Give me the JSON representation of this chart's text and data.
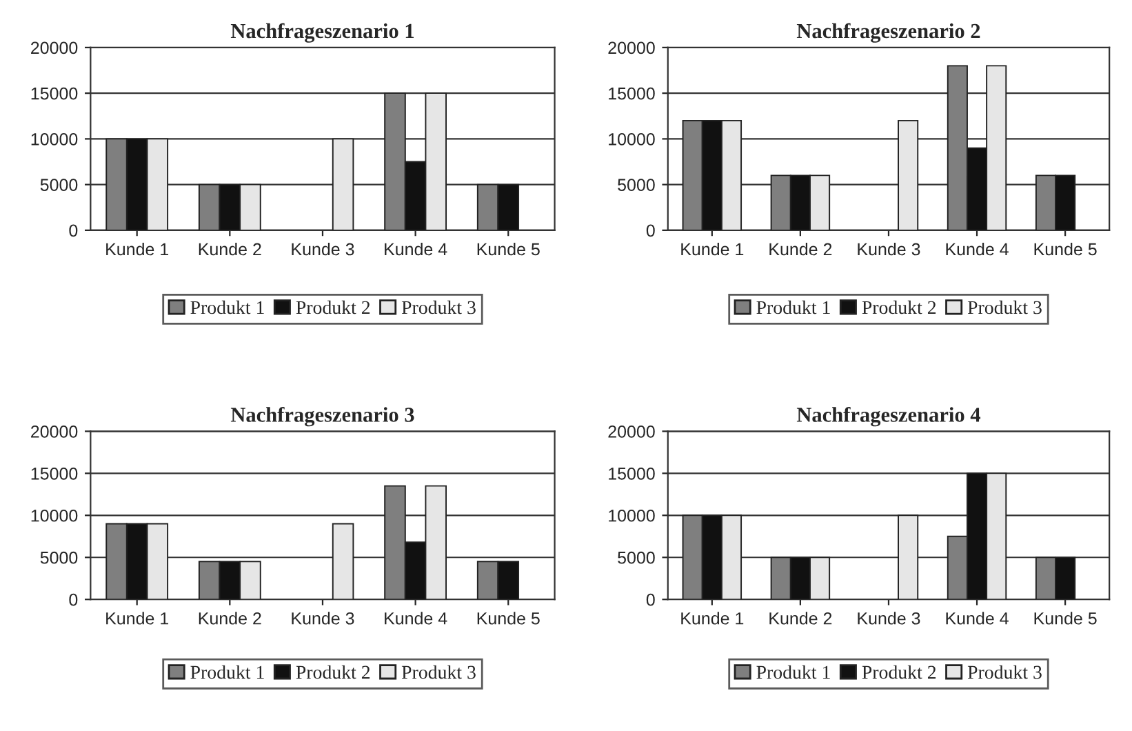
{
  "chart_data": [
    {
      "type": "bar",
      "title": "Nachfrageszenario 1",
      "categories": [
        "Kunde 1",
        "Kunde 2",
        "Kunde 3",
        "Kunde 4",
        "Kunde 5"
      ],
      "ylim": [
        0,
        20000
      ],
      "yticks": [
        0,
        5000,
        10000,
        15000,
        20000
      ],
      "grid": "y",
      "legend": "bottom",
      "series": [
        {
          "name": "Produkt 1",
          "color": "#7f7f7f",
          "values": [
            10000,
            5000,
            null,
            15000,
            5000
          ]
        },
        {
          "name": "Produkt 2",
          "color": "#111111",
          "values": [
            10000,
            5000,
            null,
            7500,
            5000
          ]
        },
        {
          "name": "Produkt 3",
          "color": "#e6e6e6",
          "values": [
            10000,
            5000,
            10000,
            15000,
            null
          ]
        }
      ]
    },
    {
      "type": "bar",
      "title": "Nachfrageszenario 2",
      "categories": [
        "Kunde 1",
        "Kunde 2",
        "Kunde 3",
        "Kunde 4",
        "Kunde 5"
      ],
      "ylim": [
        0,
        20000
      ],
      "yticks": [
        0,
        5000,
        10000,
        15000,
        20000
      ],
      "grid": "y",
      "legend": "bottom",
      "series": [
        {
          "name": "Produkt 1",
          "color": "#7f7f7f",
          "values": [
            12000,
            6000,
            null,
            18000,
            6000
          ]
        },
        {
          "name": "Produkt 2",
          "color": "#111111",
          "values": [
            12000,
            6000,
            null,
            9000,
            6000
          ]
        },
        {
          "name": "Produkt 3",
          "color": "#e6e6e6",
          "values": [
            12000,
            6000,
            12000,
            18000,
            null
          ]
        }
      ]
    },
    {
      "type": "bar",
      "title": "Nachfrageszenario 3",
      "categories": [
        "Kunde 1",
        "Kunde 2",
        "Kunde 3",
        "Kunde 4",
        "Kunde 5"
      ],
      "ylim": [
        0,
        20000
      ],
      "yticks": [
        0,
        5000,
        10000,
        15000,
        20000
      ],
      "grid": "y",
      "legend": "bottom",
      "series": [
        {
          "name": "Produkt 1",
          "color": "#7f7f7f",
          "values": [
            9000,
            4500,
            null,
            13500,
            4500
          ]
        },
        {
          "name": "Produkt 2",
          "color": "#111111",
          "values": [
            9000,
            4500,
            null,
            6800,
            4500
          ]
        },
        {
          "name": "Produkt 3",
          "color": "#e6e6e6",
          "values": [
            9000,
            4500,
            9000,
            13500,
            null
          ]
        }
      ]
    },
    {
      "type": "bar",
      "title": "Nachfrageszenario 4",
      "categories": [
        "Kunde 1",
        "Kunde 2",
        "Kunde 3",
        "Kunde 4",
        "Kunde 5"
      ],
      "ylim": [
        0,
        20000
      ],
      "yticks": [
        0,
        5000,
        10000,
        15000,
        20000
      ],
      "grid": "y",
      "legend": "bottom",
      "series": [
        {
          "name": "Produkt 1",
          "color": "#7f7f7f",
          "values": [
            10000,
            5000,
            null,
            7500,
            5000
          ]
        },
        {
          "name": "Produkt 2",
          "color": "#111111",
          "values": [
            10000,
            5000,
            null,
            15000,
            5000
          ]
        },
        {
          "name": "Produkt 3",
          "color": "#e6e6e6",
          "values": [
            10000,
            5000,
            10000,
            15000,
            null
          ]
        }
      ]
    }
  ]
}
